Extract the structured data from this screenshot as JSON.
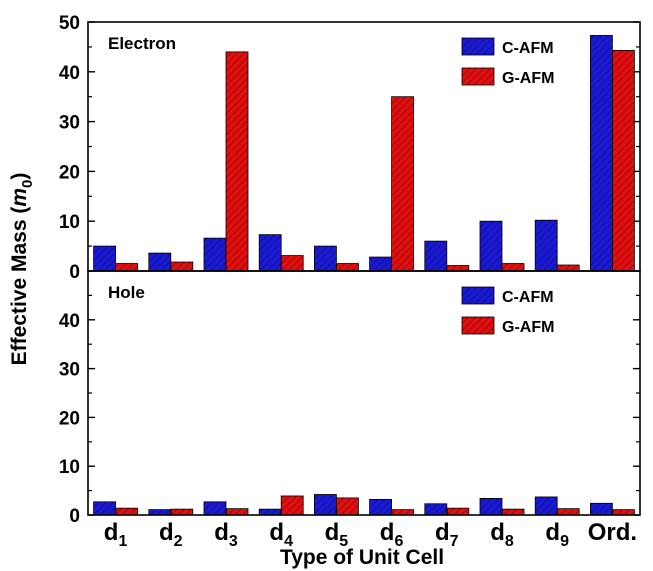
{
  "chart_data": {
    "type": "bar",
    "xlabel": "Type of Unit Cell",
    "ylabel_main": "Effective Mass (",
    "ylabel_var": "m",
    "ylabel_sub": "0",
    "ylabel_end": ")",
    "categories": [
      {
        "base": "d",
        "sub": "1"
      },
      {
        "base": "d",
        "sub": "2"
      },
      {
        "base": "d",
        "sub": "3"
      },
      {
        "base": "d",
        "sub": "4"
      },
      {
        "base": "d",
        "sub": "5"
      },
      {
        "base": "d",
        "sub": "6"
      },
      {
        "base": "d",
        "sub": "7"
      },
      {
        "base": "d",
        "sub": "8"
      },
      {
        "base": "d",
        "sub": "9"
      },
      {
        "base": "Ord.",
        "sub": ""
      }
    ],
    "colors": {
      "C-AFM": "#1a1ad6",
      "G-AFM": "#e01010"
    },
    "panels": [
      {
        "label": "Electron",
        "ylim": [
          0,
          50
        ],
        "yticks": [
          "0",
          "10",
          "20",
          "30",
          "40",
          "50"
        ],
        "legend_position": "top-right",
        "series": [
          {
            "name": "C-AFM",
            "values": [
              5.0,
              3.6,
              6.6,
              7.3,
              5.0,
              2.8,
              6.0,
              10.0,
              10.2,
              47.3
            ]
          },
          {
            "name": "G-AFM",
            "values": [
              1.5,
              1.8,
              44.0,
              3.1,
              1.5,
              35.0,
              1.1,
              1.5,
              1.2,
              44.3
            ]
          }
        ]
      },
      {
        "label": "Hole",
        "ylim": [
          0,
          50
        ],
        "yticks": [
          "0",
          "10",
          "20",
          "30",
          "40",
          ""
        ],
        "legend_position": "top-right",
        "series": [
          {
            "name": "C-AFM",
            "values": [
              2.7,
              1.1,
              2.7,
              1.2,
              4.2,
              3.2,
              2.3,
              3.4,
              3.7,
              2.4
            ]
          },
          {
            "name": "G-AFM",
            "values": [
              1.4,
              1.2,
              1.3,
              3.9,
              3.5,
              1.1,
              1.4,
              1.2,
              1.3,
              1.1
            ]
          }
        ]
      }
    ]
  }
}
